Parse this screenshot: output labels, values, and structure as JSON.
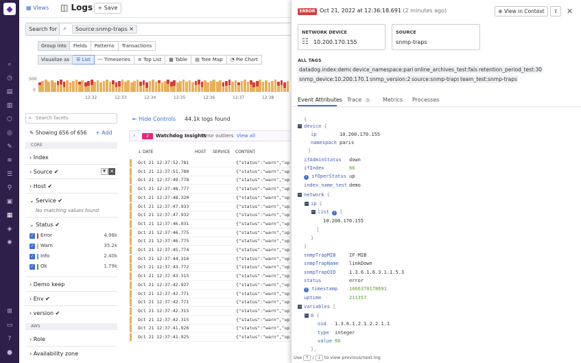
{
  "topbar": {
    "views_label": "Views",
    "title": "Logs",
    "save_label": "Save"
  },
  "search": {
    "label": "Search for",
    "query_pill": "Source:snmp-traps"
  },
  "group_into": {
    "label": "Group into",
    "options": [
      "Fields",
      "Patterns",
      "Transactions"
    ]
  },
  "visualize_as": {
    "label": "Visualize as",
    "options": [
      "List",
      "Timeseries",
      "Top List",
      "Table",
      "Tree Map",
      "Pie Chart"
    ],
    "selected": "List"
  },
  "histogram": {
    "y_labels": [
      "500",
      "0"
    ],
    "x_labels": [
      "12:32",
      "12:33",
      "12:34",
      "12:35",
      "12:36",
      "12:37",
      "12:38"
    ]
  },
  "facets": {
    "search_placeholder": "Search facets",
    "showing": "Showing 656 of 656",
    "add_label": "Add",
    "section_core": "CORE",
    "index": "Index",
    "source": "Source",
    "host": "Host",
    "service": "Service",
    "service_empty": "No matching values found",
    "status": "Status",
    "status_items": [
      {
        "label": "Error",
        "count": "4.98k",
        "color": "#d33d3d"
      },
      {
        "label": "Warn",
        "count": "35.2k",
        "color": "#e8b05a"
      },
      {
        "label": "Info",
        "count": "2.40k",
        "color": "#4d9de0"
      },
      {
        "label": "Ok",
        "count": "1.79k",
        "color": "#5a9a2c"
      }
    ],
    "demo_keep": "Demo keep",
    "env": "Env",
    "version": "version",
    "section_aws": "AWS",
    "role": "Role",
    "availability_zone": "Availability zone"
  },
  "loglist": {
    "hide_controls": "Hide Controls",
    "logs_found": "44.1k logs found",
    "watchdog_count": "2",
    "watchdog_title": "Watchdog Insights",
    "watchdog_subtitle": "Error outliers",
    "watchdog_link": "View all",
    "columns": [
      "DATE",
      "HOST",
      "SERVICE",
      "CONTENT"
    ],
    "rows": [
      {
        "date": "Oct 21 12:37:52.781",
        "content": "{\"status\":\"warn\",\"up"
      },
      {
        "date": "Oct 21 12:37:51.780",
        "content": "{\"status\":\"warn\",\"up"
      },
      {
        "date": "Oct 21 12:37:49.778",
        "content": "{\"status\":\"warn\",\"up"
      },
      {
        "date": "Oct 21 12:37:48.777",
        "content": "{\"status\":\"warn\",\"up"
      },
      {
        "date": "Oct 21 12:37:48.320",
        "content": "{\"status\":\"warn\",\"up"
      },
      {
        "date": "Oct 21 12:37:47.933",
        "content": "{\"status\":\"warn\",\"up"
      },
      {
        "date": "Oct 21 12:37:47.932",
        "content": "{\"status\":\"warn\",\"up"
      },
      {
        "date": "Oct 21 12:37:46.931",
        "content": "{\"status\":\"warn\",\"up"
      },
      {
        "date": "Oct 21 12:37:46.775",
        "content": "{\"status\":\"warn\",\"up"
      },
      {
        "date": "Oct 21 12:37:46.775",
        "content": "{\"status\":\"warn\",\"up"
      },
      {
        "date": "Oct 21 12:37:45.774",
        "content": "{\"status\":\"warn\",\"up"
      },
      {
        "date": "Oct 21 12:37:44.316",
        "content": "{\"status\":\"warn\",\"up"
      },
      {
        "date": "Oct 21 12:37:43.772",
        "content": "{\"status\":\"warn\",\"up"
      },
      {
        "date": "Oct 21 12:37:43.315",
        "content": "{\"status\":\"warn\",\"up"
      },
      {
        "date": "Oct 21 12:37:42.927",
        "content": "{\"status\":\"warn\",\"up"
      },
      {
        "date": "Oct 21 12:37:42.771",
        "content": "{\"status\":\"warn\",\"up"
      },
      {
        "date": "Oct 21 12:37:42.771",
        "content": "{\"status\":\"warn\",\"up"
      },
      {
        "date": "Oct 21 12:37:42.315",
        "content": "{\"status\":\"warn\",\"up"
      },
      {
        "date": "Oct 21 12:37:42.315",
        "content": "{\"status\":\"warn\",\"up"
      },
      {
        "date": "Oct 21 12:37:41.926",
        "content": "{\"status\":\"warn\",\"up"
      },
      {
        "date": "Oct 21 12:37:41.925",
        "content": "{\"status\":\"warn\",\"up"
      }
    ]
  },
  "panel": {
    "status_badge": "ERROR",
    "timestamp": "Oct 21, 2022 at 12:36:18.691",
    "relative_time": "(2 minutes ago)",
    "view_in_context": "View in Context",
    "network_device_title": "NETWORK DEVICE",
    "network_device_value": "10.200.170.155",
    "source_title": "SOURCE",
    "source_value": "snmp-traps",
    "all_tags_title": "ALL TAGS",
    "tags": [
      "datadog.index:demo",
      "device_namespace:paris",
      "online_archives_test:false",
      "retention_period_test:30",
      "snmp_device:10.200.170.155",
      "snmp_version:2",
      "source:snmp-traps",
      "team_test:snmp-traps"
    ],
    "tabs": [
      "Event Attributes",
      "Trace",
      "Metrics",
      "Processes"
    ],
    "trace_count": "0",
    "attributes": {
      "device_key": "device",
      "ip_key": "ip",
      "ip_val": "10.200.170.155",
      "namespace_key": "namespace",
      "namespace_val": "paris",
      "ifAdminStatus_key": "ifAdminStatus",
      "ifAdminStatus_val": "down",
      "ifIndex_key": "ifIndex",
      "ifIndex_val": "66",
      "ifOperStatus_key": "ifOperStatus",
      "ifOperStatus_val": "up",
      "index_name_test_key": "index_name_test",
      "index_name_test_val": "demo",
      "network_key": "network",
      "net_ip_key": "ip",
      "list_key": "list",
      "list_val": "10.200.170.155",
      "snmpTrapMIB_key": "snmpTrapMIB",
      "snmpTrapMIB_val": "IF-MIB",
      "snmpTrapName_key": "snmpTrapName",
      "snmpTrapName_val": "linkDown",
      "snmpTrapOID_key": "snmpTrapOID",
      "snmpTrapOID_val": "1.3.6.1.6.3.1.1.5.3",
      "status_key": "status",
      "status_val": "error",
      "timestamp_key": "timestamp",
      "timestamp_val": "1666370178691",
      "uptime_key": "uptime",
      "uptime_val": "211357",
      "variables_key": "variables",
      "idx0_key": "0",
      "oid_key": "oid",
      "oid_val": "1.3.6.1.2.1.2.2.1.1",
      "type_key": "type",
      "type_val": "integer",
      "value_key": "value",
      "value_val": "66"
    },
    "footer_use": "Use",
    "footer_up": "↑",
    "footer_slash": "/",
    "footer_down": "↓",
    "footer_rest": "to view previous/next log"
  }
}
